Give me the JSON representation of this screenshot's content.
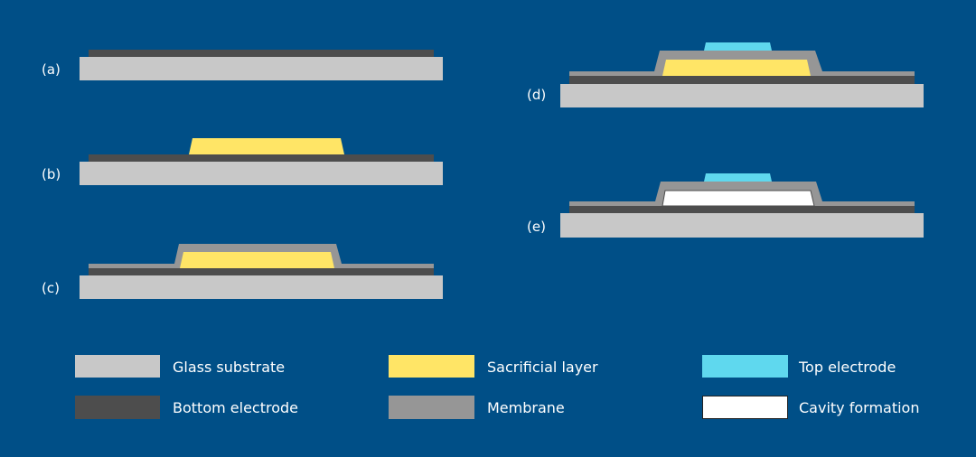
{
  "colors": {
    "background": "#004f87",
    "glass_substrate": "#c8c8c8",
    "bottom_electrode": "#4d4d4d",
    "sacrificial_layer": "#ffe566",
    "membrane": "#969696",
    "top_electrode": "#5fd8ee",
    "cavity_formation": "#ffffff"
  },
  "steps": [
    "(a)",
    "(b)",
    "(c)",
    "(d)",
    "(e)"
  ],
  "legend": [
    {
      "label": "Glass substrate",
      "color": "#c8c8c8"
    },
    {
      "label": "Sacrificial layer",
      "color": "#ffe566"
    },
    {
      "label": "Top electrode",
      "color": "#5fd8ee"
    },
    {
      "label": "Bottom electrode",
      "color": "#4d4d4d"
    },
    {
      "label": "Membrane",
      "color": "#969696"
    },
    {
      "label": "Cavity formation",
      "color": "#ffffff"
    }
  ]
}
